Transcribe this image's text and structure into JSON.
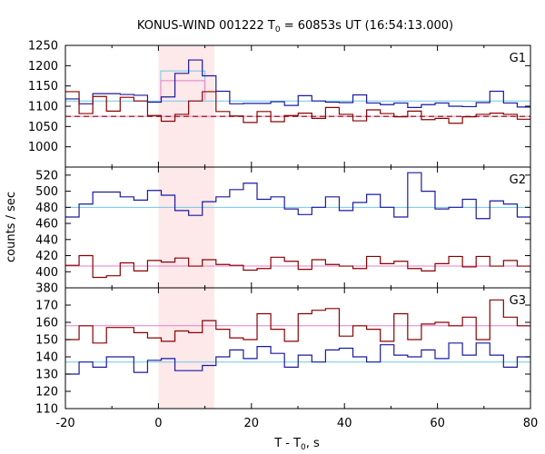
{
  "chart_data": {
    "type": "line",
    "title": {
      "prefix": "KONUS-WIND 001222 T",
      "sub": "0",
      "suffix": " = 60853s UT (16:54:13.000)"
    },
    "xlabel": {
      "main": "T - T",
      "sub": "0",
      "suffix": ", s"
    },
    "ylabel": "counts / sec",
    "xlim": [
      -20,
      80
    ],
    "xticks": [
      -20,
      0,
      20,
      40,
      60,
      80
    ],
    "highlight_interval": [
      0,
      12
    ],
    "colors": {
      "blue": "#1a1aa0",
      "red": "#8b0000",
      "cyan": "#6fc8e8",
      "pink": "#e87ec8",
      "highlight": "#fde8ea"
    },
    "panels": [
      {
        "label": "G1",
        "ylim": [
          950,
          1250
        ],
        "yticks": [
          950,
          1000,
          1050,
          1100,
          1150,
          1200,
          1250
        ],
        "show_bottom_tick": false,
        "series": [
          {
            "color": "blue",
            "bin_width": 2.944,
            "values": [
              1118,
              1106,
              1131,
              1131,
              1129,
              1127,
              1110,
              1123,
              1181,
              1214,
              1175,
              1137,
              1106,
              1107,
              1107,
              1111,
              1102,
              1126,
              1113,
              1110,
              1109,
              1128,
              1108,
              1104,
              1108,
              1097,
              1104,
              1108,
              1100,
              1099,
              1109,
              1137,
              1108,
              1098,
              1130,
              1124,
              1107,
              1137,
              1145,
              1082,
              1119,
              1116,
              1136
            ]
          },
          {
            "color": "red",
            "bin_width": 2.944,
            "values": [
              1136,
              1082,
              1124,
              1088,
              1122,
              1113,
              1077,
              1063,
              1080,
              1113,
              1136,
              1087,
              1076,
              1060,
              1087,
              1062,
              1077,
              1083,
              1070,
              1097,
              1080,
              1064,
              1091,
              1082,
              1074,
              1088,
              1067,
              1070,
              1058,
              1074,
              1080,
              1083,
              1080,
              1068,
              1076,
              1066,
              1071,
              1048,
              1067,
              1022,
              1003,
              1072,
              1072
            ]
          }
        ],
        "bg_lines": [
          {
            "color": "cyan",
            "value": 1113,
            "dashed": false
          },
          {
            "color": "pink",
            "value": 1075,
            "dashed": false
          },
          {
            "color": "red",
            "value": 1075,
            "dashed": true
          }
        ],
        "boxes": [
          {
            "color": "cyan",
            "x0": 0.5,
            "x1": 10,
            "y": 1187
          },
          {
            "color": "pink",
            "x0": 0.5,
            "x1": 10,
            "y": 1163
          }
        ]
      },
      {
        "label": "G2",
        "ylim": [
          380,
          530
        ],
        "yticks": [
          380,
          400,
          420,
          440,
          460,
          480,
          500,
          520
        ],
        "show_bottom_tick": true,
        "series": [
          {
            "color": "blue",
            "bin_width": 2.944,
            "values": [
              468,
              484,
              499,
              499,
              493,
              489,
              501,
              495,
              476,
              470,
              487,
              493,
              502,
              510,
              490,
              493,
              478,
              471,
              480,
              493,
              476,
              486,
              496,
              480,
              468,
              523,
              500,
              478,
              480,
              490,
              466,
              488,
              484,
              468,
              486,
              476,
              477,
              500,
              482,
              488,
              481,
              480,
              487
            ]
          },
          {
            "color": "red",
            "bin_width": 2.944,
            "values": [
              408,
              420,
              393,
              395,
              411,
              401,
              414,
              412,
              417,
              407,
              415,
              409,
              408,
              402,
              404,
              418,
              413,
              403,
              415,
              409,
              407,
              404,
              419,
              410,
              413,
              404,
              401,
              410,
              419,
              406,
              419,
              407,
              414,
              407,
              400,
              401,
              408,
              396,
              400,
              409,
              417,
              405,
              397
            ]
          }
        ],
        "bg_lines": [
          {
            "color": "cyan",
            "value": 480,
            "dashed": false
          },
          {
            "color": "pink",
            "value": 407,
            "dashed": false
          }
        ],
        "boxes": []
      },
      {
        "label": "G3",
        "ylim": [
          110,
          180
        ],
        "yticks": [
          110,
          120,
          130,
          140,
          150,
          160,
          170
        ],
        "show_bottom_tick": true,
        "series": [
          {
            "color": "blue",
            "bin_width": 2.944,
            "values": [
              130,
              137,
              134,
              140,
              140,
              131,
              138,
              139,
              132,
              132,
              135,
              140,
              144,
              139,
              146,
              142,
              134,
              141,
              137,
              144,
              145,
              140,
              137,
              147,
              141,
              140,
              144,
              139,
              148,
              141,
              148,
              141,
              134,
              140,
              142,
              136,
              144,
              145,
              139,
              147,
              136,
              145,
              127
            ]
          },
          {
            "color": "red",
            "bin_width": 2.944,
            "values": [
              150,
              158,
              148,
              157,
              157,
              154,
              151,
              149,
              155,
              154,
              161,
              156,
              151,
              150,
              165,
              156,
              149,
              165,
              167,
              168,
              152,
              158,
              156,
              149,
              165,
              150,
              159,
              160,
              158,
              163,
              150,
              173,
              163,
              158,
              168,
              171,
              165,
              171,
              159,
              163,
              152,
              160,
              172
            ]
          }
        ],
        "bg_lines": [
          {
            "color": "cyan",
            "value": 137,
            "dashed": false
          },
          {
            "color": "pink",
            "value": 158,
            "dashed": false
          }
        ],
        "boxes": []
      }
    ]
  }
}
